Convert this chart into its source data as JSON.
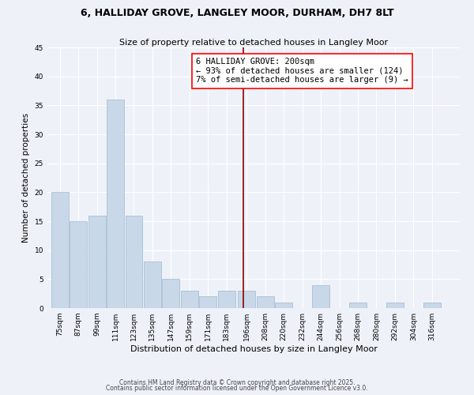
{
  "title": "6, HALLIDAY GROVE, LANGLEY MOOR, DURHAM, DH7 8LT",
  "subtitle": "Size of property relative to detached houses in Langley Moor",
  "xlabel": "Distribution of detached houses by size in Langley Moor",
  "ylabel": "Number of detached properties",
  "bins": [
    75,
    87,
    99,
    111,
    123,
    135,
    147,
    159,
    171,
    183,
    196,
    208,
    220,
    232,
    244,
    256,
    268,
    280,
    292,
    304,
    316,
    328
  ],
  "bin_labels": [
    "75sqm",
    "87sqm",
    "99sqm",
    "111sqm",
    "123sqm",
    "135sqm",
    "147sqm",
    "159sqm",
    "171sqm",
    "183sqm",
    "196sqm",
    "208sqm",
    "220sqm",
    "232sqm",
    "244sqm",
    "256sqm",
    "268sqm",
    "280sqm",
    "292sqm",
    "304sqm",
    "316sqm"
  ],
  "values": [
    20,
    15,
    16,
    36,
    16,
    8,
    5,
    3,
    2,
    3,
    3,
    2,
    1,
    0,
    4,
    0,
    1,
    0,
    1,
    0,
    1
  ],
  "bar_color": "#c8d8e8",
  "bar_edge_color": "#a0b8d0",
  "red_line_x": 200,
  "annotation_line1": "6 HALLIDAY GROVE: 200sqm",
  "annotation_line2": "← 93% of detached houses are smaller (124)",
  "annotation_line3": "7% of semi-detached houses are larger (9) →",
  "ylim": [
    0,
    45
  ],
  "yticks": [
    0,
    5,
    10,
    15,
    20,
    25,
    30,
    35,
    40,
    45
  ],
  "background_color": "#eef2f8",
  "plot_background": "#eef2f8",
  "footer_line1": "Contains HM Land Registry data © Crown copyright and database right 2025.",
  "footer_line2": "Contains public sector information licensed under the Open Government Licence v3.0.",
  "title_fontsize": 9,
  "subtitle_fontsize": 8,
  "xlabel_fontsize": 8,
  "ylabel_fontsize": 7.5,
  "tick_fontsize": 6.5,
  "annotation_fontsize": 7.5,
  "footer_fontsize": 5.5
}
